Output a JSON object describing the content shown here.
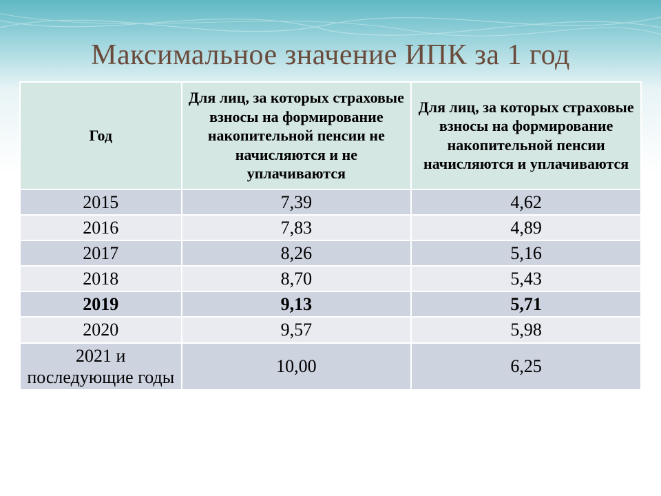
{
  "title": "Максимальное значение ИПК за 1 год",
  "title_color": "#6a4a3a",
  "background_gradient": [
    "#5fb8c4",
    "#9bd4dc",
    "#e8f4f6",
    "#ffffff"
  ],
  "table": {
    "header_bg": "#d5e7e3",
    "row_bg_a": "#ced3e0",
    "row_bg_b": "#e9ebf1",
    "text_color": "#000000",
    "border_color": "#ffffff",
    "column_widths_pct": [
      26,
      37,
      37
    ],
    "header_fontsize": 22,
    "cell_fontsize": 26,
    "columns": [
      "Год",
      "Для лиц, за которых страховые взносы на формирование накопительной пенсии не начисляются и не уплачиваются",
      "Для лиц, за которых страховые взносы на формирование накопительной пенсии начисляются и уплачиваются"
    ],
    "rows": [
      {
        "year": "2015",
        "c1": "7,39",
        "c2": "4,62",
        "bold": false
      },
      {
        "year": "2016",
        "c1": "7,83",
        "c2": "4,89",
        "bold": false
      },
      {
        "year": "2017",
        "c1": "8,26",
        "c2": "5,16",
        "bold": false
      },
      {
        "year": "2018",
        "c1": "8,70",
        "c2": "5,43",
        "bold": false
      },
      {
        "year": "2019",
        "c1": "9,13",
        "c2": "5,71",
        "bold": true
      },
      {
        "year": "2020",
        "c1": "9,57",
        "c2": "5,98",
        "bold": false
      },
      {
        "year": "2021 и последующие годы",
        "c1": "10,00",
        "c2": "6,25",
        "bold": false
      }
    ]
  }
}
